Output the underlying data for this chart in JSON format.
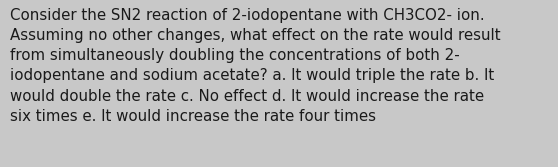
{
  "text": "Consider the SN2 reaction of 2-iodopentane with CH3CO2- ion.\nAssuming no other changes, what effect on the rate would result\nfrom simultaneously doubling the concentrations of both 2-\niodopentane and sodium acetate? a. It would triple the rate b. It\nwould double the rate c. No effect d. It would increase the rate\nsix times e. It would increase the rate four times",
  "background_color": "#c8c8c8",
  "text_color": "#1a1a1a",
  "font_size": 10.8,
  "fig_width": 5.58,
  "fig_height": 1.67,
  "dpi": 100
}
